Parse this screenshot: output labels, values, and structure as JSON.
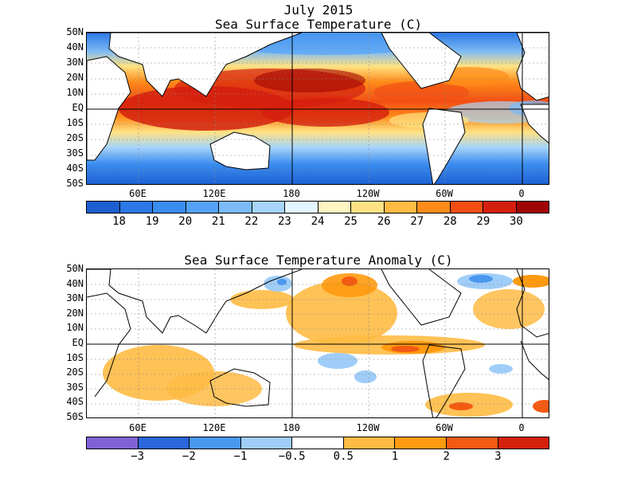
{
  "header": {
    "month_year": "July 2015"
  },
  "sst_panel": {
    "title": "Sea Surface Temperature (C)",
    "lat_labels": [
      "50N",
      "40N",
      "30N",
      "20N",
      "10N",
      "EQ",
      "10S",
      "20S",
      "30S",
      "40S",
      "50S"
    ],
    "lon_labels": [
      "60E",
      "120E",
      "180",
      "120W",
      "60W",
      "0"
    ],
    "colorbar": {
      "colors": [
        "#1d5fd1",
        "#2b78e6",
        "#3a8cef",
        "#55a2f5",
        "#7bbaf7",
        "#a6d4fa",
        "#e3f6ff",
        "#fff5c2",
        "#ffe283",
        "#ffbb44",
        "#ff8c1a",
        "#f24e14",
        "#d41e0e",
        "#a00505"
      ],
      "labels": [
        "18",
        "19",
        "20",
        "21",
        "22",
        "23",
        "24",
        "25",
        "26",
        "27",
        "28",
        "29",
        "30"
      ]
    }
  },
  "anomaly_panel": {
    "title": "Sea Surface Temperature Anomaly (C)",
    "lat_labels": [
      "50N",
      "40N",
      "30N",
      "20N",
      "10N",
      "EQ",
      "10S",
      "20S",
      "30S",
      "40S",
      "50S"
    ],
    "lon_labels": [
      "60E",
      "120E",
      "180",
      "120W",
      "60W",
      "0"
    ],
    "colorbar": {
      "colors": [
        "#7f63d6",
        "#2a66dc",
        "#4a98ee",
        "#9fcdf8",
        "#ffffff",
        "#ffbb44",
        "#ff9a10",
        "#f35a12",
        "#d4200c"
      ],
      "labels": [
        "−3",
        "−2",
        "−1",
        "−0.5",
        "0.5",
        "1",
        "2",
        "3"
      ]
    }
  }
}
